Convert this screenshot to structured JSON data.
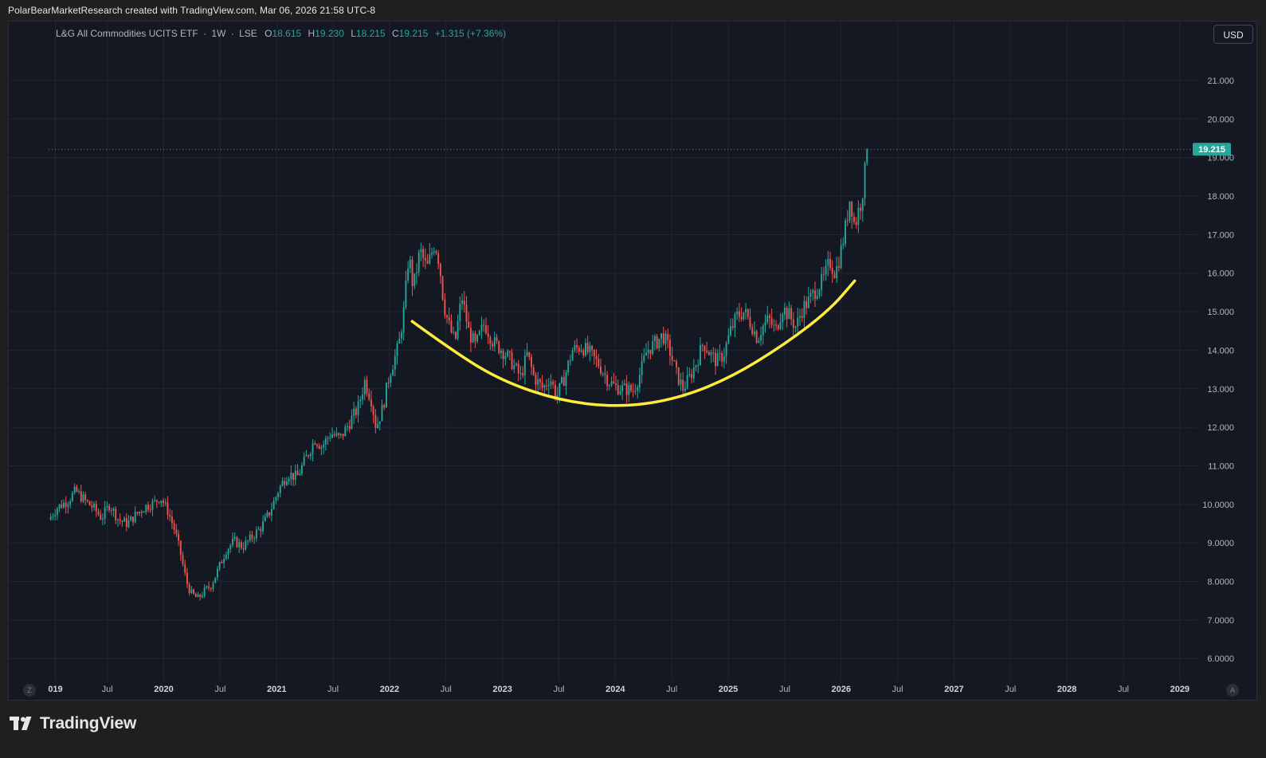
{
  "header": {
    "credit": "PolarBearMarketResearch created with TradingView.com, Mar 06, 2026 21:58 UTC-8"
  },
  "legend": {
    "symbol": "L&G All Commodities UCITS ETF",
    "interval": "1W",
    "exchange": "LSE",
    "dot": "·",
    "o_label": "O",
    "o_value": "18.615",
    "h_label": "H",
    "h_value": "19.230",
    "l_label": "L",
    "l_value": "18.215",
    "c_label": "C",
    "c_value": "19.215",
    "change": "+1.315 (+7.36%)"
  },
  "toolbar": {
    "currency": "USD",
    "scale_left": "Z",
    "scale_auto": "A"
  },
  "footer": {
    "brand": "TradingView"
  },
  "colors": {
    "up": "#26a69a",
    "down": "#ef5350",
    "curve": "#ffeb3b",
    "background": "#141823",
    "grid": "#222632",
    "axis_text": "#b2b5be",
    "last_price_bg": "#26a69a"
  },
  "icons": {
    "logo": "tradingview-logo-icon"
  },
  "chart_data": {
    "type": "candlestick",
    "interval": "1W",
    "y_ticks": [
      "6.0000",
      "7.0000",
      "8.0000",
      "9.0000",
      "10.0000",
      "11.000",
      "12.000",
      "13.000",
      "14.000",
      "15.000",
      "16.000",
      "17.000",
      "18.000",
      "19.000",
      "20.000",
      "21.000"
    ],
    "y_tick_values": [
      6,
      7,
      8,
      9,
      10,
      11,
      12,
      13,
      14,
      15,
      16,
      17,
      18,
      19,
      20,
      21
    ],
    "ylim": [
      5.55,
      21.95
    ],
    "x_ticks": [
      "019",
      "Jul",
      "2020",
      "Jul",
      "2021",
      "Jul",
      "2022",
      "Jul",
      "2023",
      "Jul",
      "2024",
      "Jul",
      "2025",
      "Jul",
      "2026",
      "Jul",
      "2027",
      "Jul",
      "2028",
      "Jul",
      "2029"
    ],
    "x_tick_dates": [
      2019.04,
      2019.5,
      2020.0,
      2020.5,
      2021.0,
      2021.5,
      2022.0,
      2022.5,
      2023.0,
      2023.5,
      2024.0,
      2024.5,
      2025.0,
      2025.5,
      2026.0,
      2026.5,
      2027.0,
      2027.5,
      2028.0,
      2028.5,
      2029.0
    ],
    "xlim": [
      2018.98,
      2029.1
    ],
    "last_price": {
      "value": 19.215,
      "label": "19.215"
    },
    "price_path": [
      [
        2018.98,
        9.6
      ],
      [
        2019.05,
        9.9
      ],
      [
        2019.15,
        10.1
      ],
      [
        2019.22,
        10.35
      ],
      [
        2019.3,
        10.1
      ],
      [
        2019.38,
        9.9
      ],
      [
        2019.45,
        9.65
      ],
      [
        2019.52,
        10.0
      ],
      [
        2019.6,
        9.6
      ],
      [
        2019.68,
        9.5
      ],
      [
        2019.76,
        9.75
      ],
      [
        2019.84,
        9.95
      ],
      [
        2019.92,
        10.05
      ],
      [
        2019.97,
        10.2
      ],
      [
        2020.04,
        9.8
      ],
      [
        2020.1,
        9.3
      ],
      [
        2020.15,
        8.7
      ],
      [
        2020.2,
        8.0
      ],
      [
        2020.24,
        7.7
      ],
      [
        2020.3,
        7.55
      ],
      [
        2020.36,
        7.75
      ],
      [
        2020.42,
        7.9
      ],
      [
        2020.48,
        8.3
      ],
      [
        2020.55,
        8.8
      ],
      [
        2020.62,
        9.05
      ],
      [
        2020.7,
        8.9
      ],
      [
        2020.78,
        9.15
      ],
      [
        2020.86,
        9.4
      ],
      [
        2020.94,
        9.8
      ],
      [
        2021.02,
        10.4
      ],
      [
        2021.1,
        10.8
      ],
      [
        2021.18,
        10.7
      ],
      [
        2021.26,
        11.2
      ],
      [
        2021.34,
        11.7
      ],
      [
        2021.4,
        11.5
      ],
      [
        2021.48,
        11.85
      ],
      [
        2021.56,
        11.7
      ],
      [
        2021.64,
        12.1
      ],
      [
        2021.72,
        12.5
      ],
      [
        2021.78,
        13.2
      ],
      [
        2021.84,
        12.7
      ],
      [
        2021.88,
        12.0
      ],
      [
        2021.94,
        12.5
      ],
      [
        2022.0,
        13.4
      ],
      [
        2022.08,
        14.1
      ],
      [
        2022.13,
        15.1
      ],
      [
        2022.17,
        16.5
      ],
      [
        2022.21,
        15.6
      ],
      [
        2022.27,
        16.6
      ],
      [
        2022.33,
        16.1
      ],
      [
        2022.4,
        16.8
      ],
      [
        2022.44,
        16.3
      ],
      [
        2022.48,
        15.2
      ],
      [
        2022.53,
        14.6
      ],
      [
        2022.58,
        14.2
      ],
      [
        2022.64,
        15.4
      ],
      [
        2022.7,
        14.5
      ],
      [
        2022.76,
        14.1
      ],
      [
        2022.84,
        14.7
      ],
      [
        2022.92,
        14.2
      ],
      [
        2023.0,
        14.0
      ],
      [
        2023.08,
        13.7
      ],
      [
        2023.16,
        13.3
      ],
      [
        2023.22,
        13.9
      ],
      [
        2023.28,
        13.3
      ],
      [
        2023.36,
        13.0
      ],
      [
        2023.42,
        13.3
      ],
      [
        2023.48,
        12.8
      ],
      [
        2023.55,
        13.3
      ],
      [
        2023.62,
        14.0
      ],
      [
        2023.7,
        14.1
      ],
      [
        2023.78,
        13.9
      ],
      [
        2023.86,
        13.6
      ],
      [
        2023.94,
        13.2
      ],
      [
        2024.0,
        13.05
      ],
      [
        2024.08,
        13.0
      ],
      [
        2024.16,
        12.95
      ],
      [
        2024.22,
        13.4
      ],
      [
        2024.28,
        14.0
      ],
      [
        2024.36,
        14.2
      ],
      [
        2024.42,
        14.4
      ],
      [
        2024.48,
        14.0
      ],
      [
        2024.54,
        13.4
      ],
      [
        2024.6,
        13.0
      ],
      [
        2024.66,
        13.3
      ],
      [
        2024.72,
        13.7
      ],
      [
        2024.78,
        14.2
      ],
      [
        2024.84,
        13.9
      ],
      [
        2024.9,
        13.7
      ],
      [
        2024.96,
        13.9
      ],
      [
        2025.02,
        14.5
      ],
      [
        2025.08,
        14.9
      ],
      [
        2025.14,
        15.0
      ],
      [
        2025.2,
        14.7
      ],
      [
        2025.26,
        14.3
      ],
      [
        2025.3,
        14.6
      ],
      [
        2025.36,
        14.8
      ],
      [
        2025.42,
        14.5
      ],
      [
        2025.48,
        15.1
      ],
      [
        2025.54,
        14.9
      ],
      [
        2025.6,
        14.6
      ],
      [
        2025.66,
        15.1
      ],
      [
        2025.72,
        15.3
      ],
      [
        2025.78,
        15.6
      ],
      [
        2025.84,
        15.8
      ],
      [
        2025.9,
        16.3
      ],
      [
        2025.95,
        16.0
      ],
      [
        2026.0,
        16.6
      ],
      [
        2026.04,
        17.2
      ],
      [
        2026.08,
        18.0
      ],
      [
        2026.12,
        17.2
      ],
      [
        2026.15,
        17.6
      ],
      [
        2026.18,
        17.9
      ],
      [
        2026.21,
        18.6
      ],
      [
        2026.24,
        19.215
      ]
    ],
    "annotations": [
      {
        "type": "curve",
        "color": "#ffeb3b",
        "points": [
          [
            2022.2,
            14.75
          ],
          [
            2022.6,
            13.9
          ],
          [
            2023.0,
            13.2
          ],
          [
            2023.5,
            12.7
          ],
          [
            2024.0,
            12.52
          ],
          [
            2024.5,
            12.7
          ],
          [
            2025.0,
            13.25
          ],
          [
            2025.5,
            14.15
          ],
          [
            2025.9,
            15.05
          ],
          [
            2026.12,
            15.8
          ]
        ]
      }
    ]
  }
}
